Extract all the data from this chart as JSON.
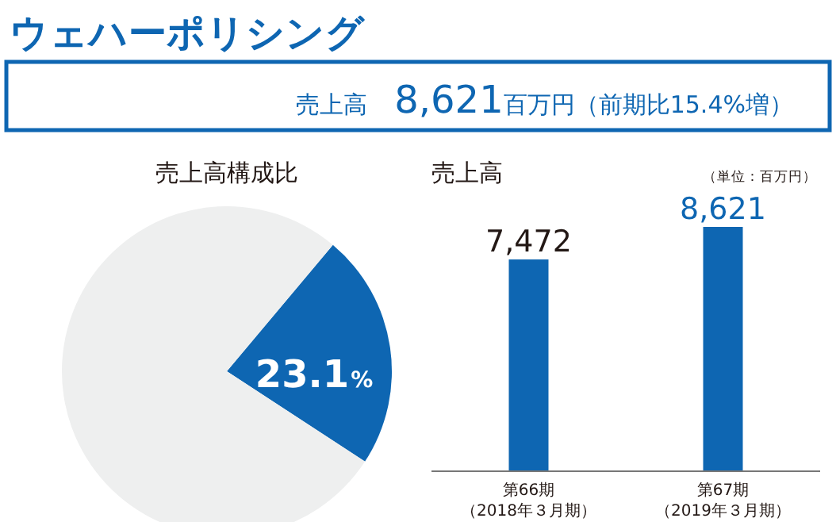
{
  "chart_data": [
    {
      "type": "other",
      "title": "ウェハーポリシング",
      "annotations": [
        "売上高　8,621百万円（前期比15.4%増）"
      ]
    },
    {
      "type": "pie",
      "title": "売上高構成比",
      "categories": [
        null,
        null
      ],
      "values": [
        23.1,
        76.9
      ],
      "colors": [
        "#0e66b2",
        "#eeefef"
      ],
      "value_labels": [
        "23.1%",
        null
      ]
    },
    {
      "type": "bar",
      "title": "売上高",
      "annotations": [
        "（単位：百万円）"
      ],
      "categories": [
        "第66期（2018年３月期）",
        "第67期（2019年３月期）"
      ],
      "values": [
        7472,
        8621
      ],
      "color": "#0e66b2",
      "value_labels": [
        "7,472",
        "8,621"
      ]
    }
  ]
}
